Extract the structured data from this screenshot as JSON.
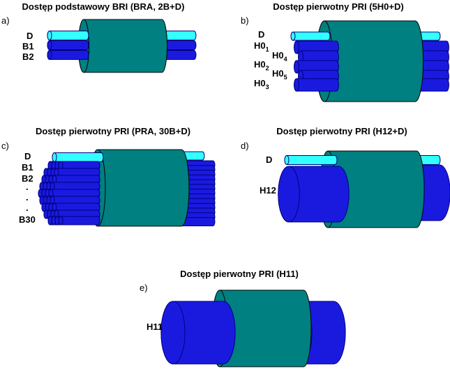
{
  "colors": {
    "teal": "#008080",
    "blue": "#1a1adf",
    "cyan": "#33ffff",
    "outline": "#000080"
  },
  "panels": [
    {
      "letter": "a)",
      "title": "Dostęp podstawowy BRI (BRA, 2B+D)",
      "labels": [
        "D",
        "B1",
        "B2"
      ]
    },
    {
      "letter": "b)",
      "title": "Dostęp pierwotny PRI (5H0+D)",
      "labels": {
        "d": "D",
        "h0_1": "H0",
        "h0_1_sub": "1",
        "h0_4": "H0",
        "h0_4_sub": "4",
        "h0_2": "H0",
        "h0_2_sub": "2",
        "h0_5": "H0",
        "h0_5_sub": "5",
        "h0_3": "H0",
        "h0_3_sub": "3"
      }
    },
    {
      "letter": "c)",
      "title": "Dostęp pierwotny PRI (PRA, 30B+D)",
      "labels": [
        "D",
        "B1",
        "B2",
        ".",
        ".",
        ".",
        "B30"
      ]
    },
    {
      "letter": "d)",
      "title": "Dostęp pierwotny PRI (H12+D)",
      "labels": [
        "D",
        "H12"
      ]
    },
    {
      "letter": "e)",
      "title": "Dostęp pierwotny PRI (H11)",
      "labels": [
        "H11"
      ]
    }
  ]
}
